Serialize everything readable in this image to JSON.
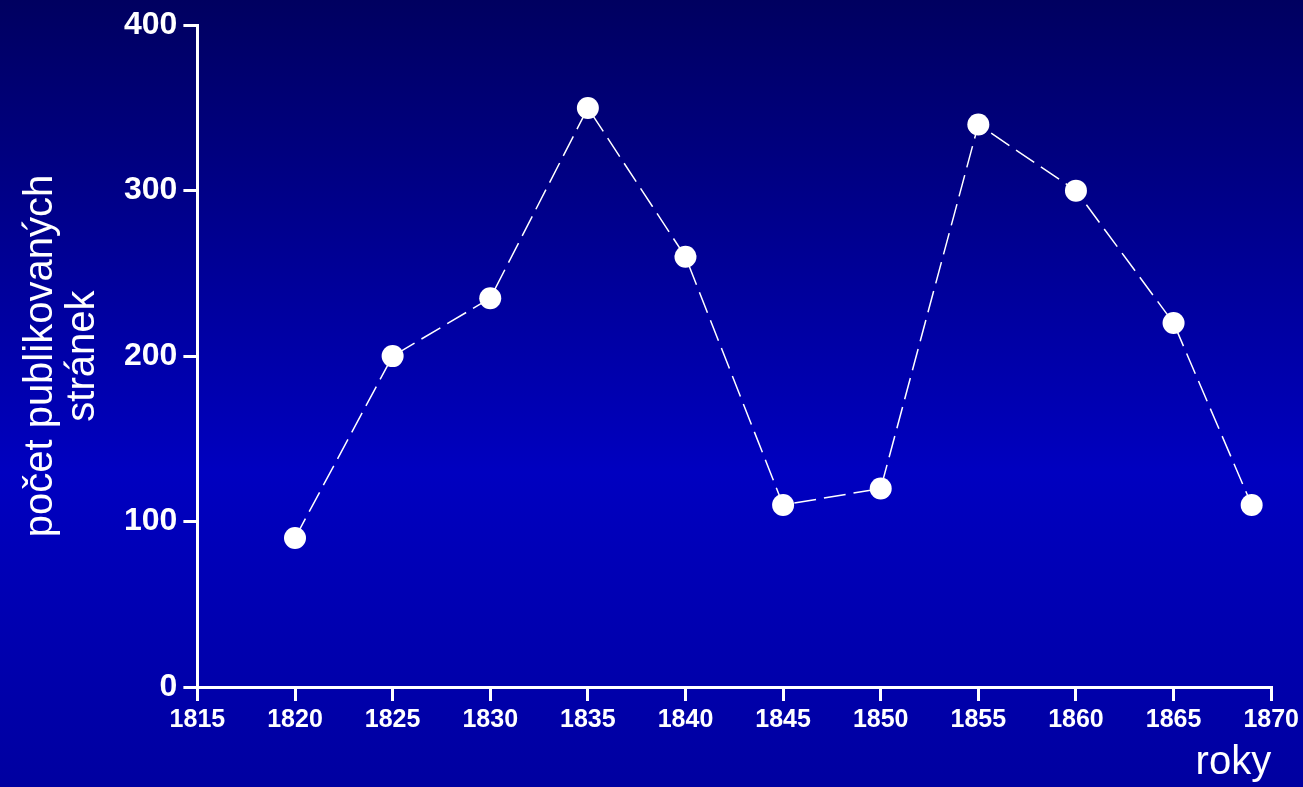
{
  "chart_data": {
    "type": "line",
    "xlabel": "roky",
    "ylabel": "počet publikovaných stránek",
    "x": [
      1820,
      1825,
      1830,
      1835,
      1840,
      1845,
      1850,
      1855,
      1860,
      1865,
      1869
    ],
    "series": [
      {
        "color": "#ffffff",
        "values": [
          90,
          200,
          235,
          350,
          260,
          110,
          120,
          340,
          300,
          220,
          110
        ]
      }
    ],
    "xlim": [
      1815,
      1870
    ],
    "xticks": [
      1815,
      1820,
      1825,
      1830,
      1835,
      1840,
      1845,
      1850,
      1855,
      1860,
      1865,
      1870
    ],
    "ylim": [
      0,
      400
    ],
    "yticks": [
      0,
      100,
      200,
      300,
      400
    ],
    "grid": false,
    "legend": false,
    "marker": "circle",
    "line_style": "dashed"
  }
}
